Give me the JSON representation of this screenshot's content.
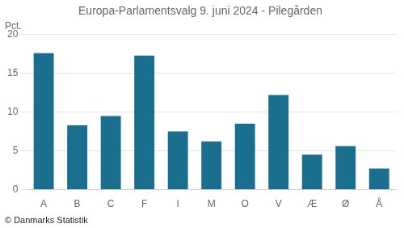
{
  "chart_data": {
    "type": "bar",
    "title": "Europa-Parlamentsvalg 9. juni 2024 - Pilegården",
    "ylabel": "Pct.",
    "annotations": [
      "© Danmarks Statistik"
    ],
    "categories": [
      "A",
      "B",
      "C",
      "F",
      "I",
      "M",
      "O",
      "V",
      "Æ",
      "Ø",
      "Å"
    ],
    "values": [
      17.6,
      8.3,
      9.5,
      17.3,
      7.5,
      6.2,
      8.5,
      12.2,
      4.5,
      5.6,
      2.7
    ],
    "color": "#1a6e8e",
    "ylim": [
      0,
      20
    ],
    "yticks": [
      0,
      5,
      10,
      15,
      20
    ],
    "grid": true
  }
}
